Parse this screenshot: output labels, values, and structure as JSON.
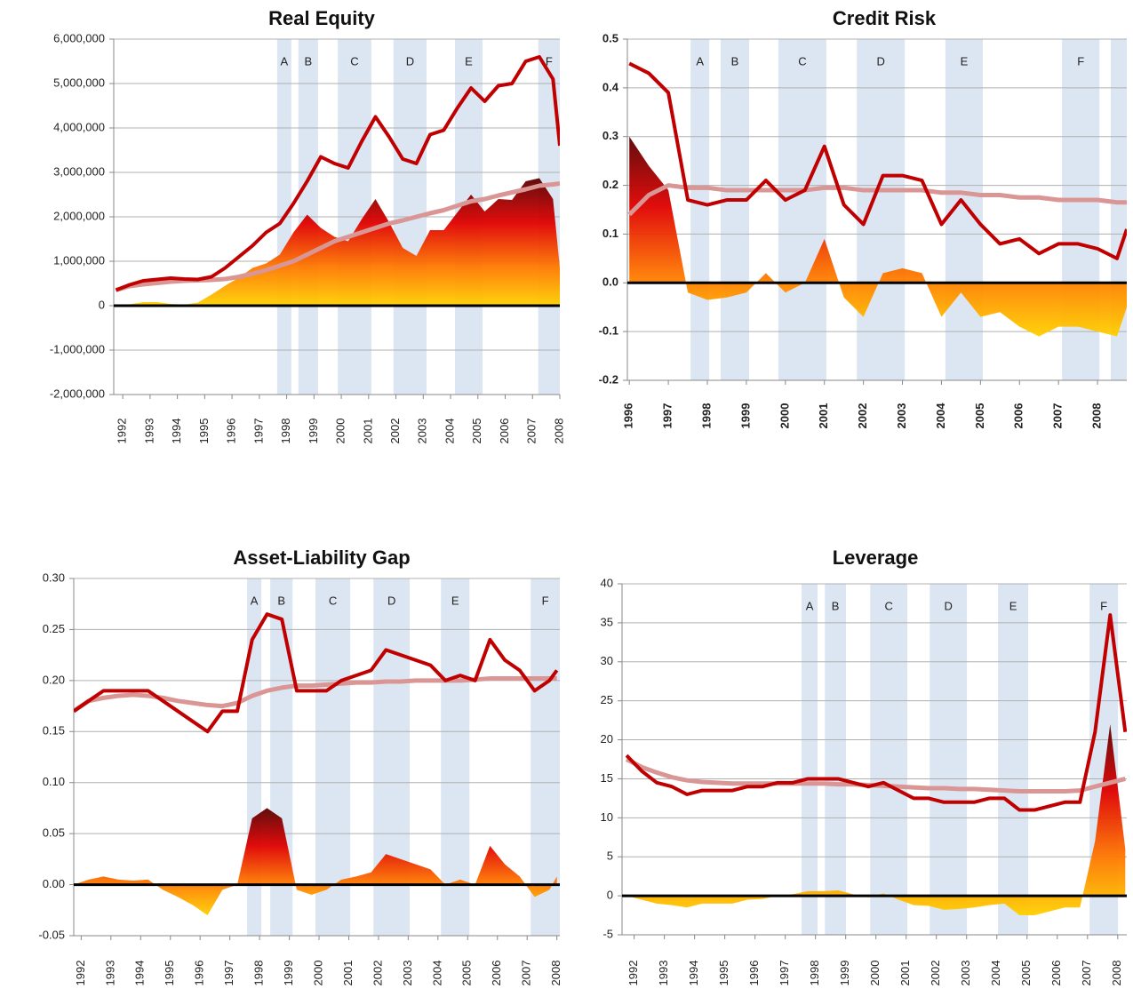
{
  "chart_data": [
    {
      "type": "line",
      "title": "Real Equity",
      "x": [
        1991.75,
        1992.25,
        1992.75,
        1993.25,
        1993.75,
        1994.25,
        1994.75,
        1995.25,
        1995.75,
        1996.25,
        1996.75,
        1997.25,
        1997.75,
        1998.25,
        1998.75,
        1999.25,
        1999.75,
        2000.25,
        2000.75,
        2001.25,
        2001.75,
        2002.25,
        2002.75,
        2003.25,
        2003.75,
        2004.25,
        2004.75,
        2005.25,
        2005.75,
        2006.25,
        2006.75,
        2007.25,
        2007.75,
        2008.0
      ],
      "series": [
        {
          "color": "#ff6600",
          "style": "area",
          "values": [
            0,
            30000,
            80000,
            80000,
            40000,
            20000,
            70000,
            250000,
            450000,
            630000,
            850000,
            950000,
            1150000,
            1650000,
            2050000,
            1750000,
            1550000,
            1450000,
            1950000,
            2400000,
            1880000,
            1300000,
            1120000,
            1700000,
            1700000,
            2100000,
            2500000,
            2120000,
            2400000,
            2380000,
            2800000,
            2870000,
            2400000,
            850000
          ]
        },
        {
          "color": "#d99694",
          "style": "line",
          "values": [
            350000,
            440000,
            480000,
            510000,
            540000,
            560000,
            570000,
            580000,
            600000,
            650000,
            720000,
            800000,
            900000,
            1000000,
            1150000,
            1300000,
            1450000,
            1550000,
            1650000,
            1750000,
            1850000,
            1920000,
            2000000,
            2080000,
            2150000,
            2250000,
            2350000,
            2400000,
            2480000,
            2550000,
            2620000,
            2700000,
            2730000,
            2750000
          ]
        },
        {
          "color": "#c00000",
          "style": "line",
          "values": [
            350000,
            470000,
            560000,
            590000,
            620000,
            600000,
            590000,
            650000,
            850000,
            1100000,
            1350000,
            1650000,
            1850000,
            2300000,
            2800000,
            3350000,
            3200000,
            3100000,
            3700000,
            4250000,
            3800000,
            3300000,
            3200000,
            3850000,
            3950000,
            4450000,
            4900000,
            4600000,
            4950000,
            5000000,
            5500000,
            5600000,
            5100000,
            3600000
          ]
        }
      ],
      "bands": [
        {
          "label": "A",
          "start": 1997.65,
          "end": 1998.17
        },
        {
          "label": "B",
          "start": 1998.43,
          "end": 1999.15
        },
        {
          "label": "C",
          "start": 1999.87,
          "end": 2001.1
        },
        {
          "label": "D",
          "start": 2001.91,
          "end": 2003.12
        },
        {
          "label": "E",
          "start": 2004.16,
          "end": 2005.17
        },
        {
          "label": "F",
          "start": 2007.21,
          "end": 2008.0
        }
      ],
      "xlim": [
        1991.67,
        2008.0
      ],
      "xticks": [
        1992,
        1993,
        1994,
        1995,
        1996,
        1997,
        1998,
        1999,
        2000,
        2001,
        2002,
        2003,
        2004,
        2005,
        2006,
        2007,
        2008
      ],
      "ylim": [
        -2000000,
        6000000
      ],
      "yticks": [
        {
          "value": -2000000,
          "label": "-2,000,000"
        },
        {
          "value": -1000000,
          "label": "-1,000,000"
        },
        0,
        {
          "value": 1000000,
          "label": "1,000,000"
        },
        {
          "value": 2000000,
          "label": "2,000,000"
        },
        {
          "value": 3000000,
          "label": "3,000,000"
        },
        {
          "value": 4000000,
          "label": "4,000,000"
        },
        {
          "value": 5000000,
          "label": "5,000,000"
        },
        {
          "value": 6000000,
          "label": "6,000,000"
        }
      ],
      "grid": true,
      "band_color": "#dce6f2"
    },
    {
      "type": "line",
      "title": "Credit Risk",
      "x": [
        1996.0,
        1996.5,
        1997.0,
        1997.5,
        1998.0,
        1998.5,
        1999.0,
        1999.5,
        2000.0,
        2000.5,
        2001.0,
        2001.5,
        2002.0,
        2002.5,
        2003.0,
        2003.5,
        2004.0,
        2004.5,
        2005.0,
        2005.5,
        2006.0,
        2006.5,
        2007.0,
        2007.5,
        2008.0,
        2008.5,
        2008.75
      ],
      "series": [
        {
          "color": "#ff6600",
          "style": "area",
          "values": [
            0.3,
            0.24,
            0.19,
            -0.02,
            -0.035,
            -0.03,
            -0.02,
            0.02,
            -0.02,
            0.0,
            0.09,
            -0.03,
            -0.07,
            0.02,
            0.03,
            0.02,
            -0.07,
            -0.02,
            -0.07,
            -0.06,
            -0.09,
            -0.11,
            -0.09,
            -0.09,
            -0.1,
            -0.11,
            -0.05
          ]
        },
        {
          "color": "#d99694",
          "style": "line",
          "values": [
            0.14,
            0.18,
            0.2,
            0.195,
            0.195,
            0.19,
            0.19,
            0.19,
            0.19,
            0.19,
            0.195,
            0.195,
            0.19,
            0.19,
            0.19,
            0.19,
            0.185,
            0.185,
            0.18,
            0.18,
            0.175,
            0.175,
            0.17,
            0.17,
            0.17,
            0.165,
            0.165
          ]
        },
        {
          "color": "#c00000",
          "style": "line",
          "values": [
            0.45,
            0.43,
            0.39,
            0.17,
            0.16,
            0.17,
            0.17,
            0.21,
            0.17,
            0.19,
            0.28,
            0.16,
            0.12,
            0.22,
            0.22,
            0.21,
            0.12,
            0.17,
            0.12,
            0.08,
            0.09,
            0.06,
            0.08,
            0.08,
            0.07,
            0.05,
            0.11
          ]
        }
      ],
      "bands": [
        {
          "label": "A",
          "start": 1997.57,
          "end": 1998.05
        },
        {
          "label": "B",
          "start": 1998.34,
          "end": 1999.07
        },
        {
          "label": "C",
          "start": 1999.82,
          "end": 2001.05
        },
        {
          "label": "D",
          "start": 2001.83,
          "end": 2003.06
        },
        {
          "label": "E",
          "start": 2004.1,
          "end": 2005.06
        },
        {
          "label": "F",
          "start": 2007.09,
          "end": 2008.05
        },
        {
          "label": null,
          "start": 2008.34,
          "end": 2008.75
        }
      ],
      "xlim": [
        1995.95,
        2008.75
      ],
      "xticks": [
        1996,
        1997,
        1998,
        1999,
        2000,
        2001,
        2002,
        2003,
        2004,
        2005,
        2006,
        2007,
        2008
      ],
      "ylim": [
        -0.2,
        0.5
      ],
      "yticks": [
        -0.2,
        -0.1,
        {
          "value": 0,
          "label": "0.0"
        },
        0.1,
        0.2,
        0.3,
        0.4,
        0.5
      ],
      "grid": true,
      "band_color": "#dce6f2"
    },
    {
      "type": "line",
      "title": "Asset-Liability Gap",
      "x": [
        1991.75,
        1992.25,
        1992.75,
        1993.25,
        1993.75,
        1994.25,
        1994.75,
        1995.25,
        1995.75,
        1996.25,
        1996.75,
        1997.25,
        1997.75,
        1998.25,
        1998.75,
        1999.25,
        1999.75,
        2000.25,
        2000.75,
        2001.25,
        2001.75,
        2002.25,
        2002.75,
        2003.25,
        2003.75,
        2004.25,
        2004.75,
        2005.25,
        2005.75,
        2006.25,
        2006.75,
        2007.25,
        2007.75,
        2008.0
      ],
      "series": [
        {
          "color": "#ff6600",
          "style": "area",
          "values": [
            0,
            0.005,
            0.008,
            0.005,
            0.004,
            0.005,
            -0.005,
            -0.012,
            -0.02,
            -0.03,
            -0.005,
            0.0,
            0.065,
            0.075,
            0.065,
            -0.005,
            -0.01,
            -0.005,
            0.005,
            0.008,
            0.012,
            0.03,
            0.025,
            0.02,
            0.015,
            0.0,
            0.005,
            0.0,
            0.038,
            0.02,
            0.008,
            -0.012,
            -0.005,
            0.008
          ]
        },
        {
          "color": "#d99694",
          "style": "line",
          "values": [
            0.17,
            0.18,
            0.183,
            0.185,
            0.186,
            0.185,
            0.183,
            0.18,
            0.178,
            0.176,
            0.175,
            0.178,
            0.185,
            0.19,
            0.193,
            0.195,
            0.195,
            0.196,
            0.197,
            0.198,
            0.198,
            0.199,
            0.199,
            0.2,
            0.2,
            0.2,
            0.2,
            0.201,
            0.202,
            0.202,
            0.202,
            0.202,
            0.202,
            0.202
          ]
        },
        {
          "color": "#c00000",
          "style": "line",
          "values": [
            0.17,
            0.18,
            0.19,
            0.19,
            0.19,
            0.19,
            0.18,
            0.17,
            0.16,
            0.15,
            0.17,
            0.17,
            0.24,
            0.265,
            0.26,
            0.19,
            0.19,
            0.19,
            0.2,
            0.205,
            0.21,
            0.23,
            0.225,
            0.22,
            0.215,
            0.2,
            0.205,
            0.2,
            0.24,
            0.22,
            0.21,
            0.19,
            0.2,
            0.21
          ]
        }
      ],
      "bands": [
        {
          "label": "A",
          "start": 1997.58,
          "end": 1998.06
        },
        {
          "label": "B",
          "start": 1998.36,
          "end": 1999.11
        },
        {
          "label": "C",
          "start": 1999.88,
          "end": 2001.05
        },
        {
          "label": "D",
          "start": 2001.83,
          "end": 2003.05
        },
        {
          "label": "E",
          "start": 2004.1,
          "end": 2005.06
        },
        {
          "label": "F",
          "start": 2007.12,
          "end": 2008.1
        }
      ],
      "xlim": [
        1991.75,
        2008.1
      ],
      "xticks": [
        1992,
        1993,
        1994,
        1995,
        1996,
        1997,
        1998,
        1999,
        2000,
        2001,
        2002,
        2003,
        2004,
        2005,
        2006,
        2007,
        2008
      ],
      "ylim": [
        -0.05,
        0.3
      ],
      "yticks": [
        -0.05,
        {
          "value": 0,
          "label": "0.00"
        },
        0.05,
        {
          "value": 0.1,
          "label": "0.10"
        },
        0.15,
        {
          "value": 0.2,
          "label": "0.20"
        },
        0.25,
        {
          "value": 0.3,
          "label": "0.30"
        }
      ],
      "grid": true,
      "band_color": "#dce6f2"
    },
    {
      "type": "line",
      "title": "Leverage",
      "x": [
        1991.75,
        1992.25,
        1992.75,
        1993.25,
        1993.75,
        1994.25,
        1994.75,
        1995.25,
        1995.75,
        1996.25,
        1996.75,
        1997.25,
        1997.75,
        1998.25,
        1998.75,
        1999.25,
        1999.75,
        2000.25,
        2000.75,
        2001.25,
        2001.75,
        2002.25,
        2002.75,
        2003.25,
        2003.75,
        2004.25,
        2004.75,
        2005.25,
        2005.75,
        2006.25,
        2006.75,
        2007.25,
        2007.75,
        2008.25
      ],
      "series": [
        {
          "color": "#ffcc00",
          "style": "area",
          "values": [
            0,
            -0.5,
            -1,
            -1.2,
            -1.5,
            -1,
            -1,
            -1,
            -0.5,
            -0.4,
            0,
            0.2,
            0.6,
            0.6,
            0.7,
            0.2,
            -0.2,
            0.3,
            -0.5,
            -1.2,
            -1.3,
            -1.8,
            -1.7,
            -1.5,
            -1.2,
            -1.0,
            -2.5,
            -2.5,
            -2,
            -1.5,
            -1.5,
            7,
            22,
            6
          ]
        },
        {
          "color": "#d99694",
          "style": "line",
          "values": [
            17.5,
            16.5,
            15.8,
            15.2,
            14.8,
            14.6,
            14.5,
            14.4,
            14.4,
            14.4,
            14.4,
            14.4,
            14.4,
            14.4,
            14.3,
            14.3,
            14.2,
            14.1,
            14.0,
            13.9,
            13.8,
            13.8,
            13.7,
            13.7,
            13.6,
            13.5,
            13.4,
            13.4,
            13.4,
            13.4,
            13.5,
            14.0,
            14.5,
            15
          ]
        },
        {
          "color": "#c00000",
          "style": "line",
          "values": [
            18,
            16,
            14.5,
            14,
            13,
            13.5,
            13.5,
            13.5,
            14,
            14,
            14.5,
            14.5,
            15,
            15,
            15,
            14.5,
            14,
            14.5,
            13.5,
            12.5,
            12.5,
            12,
            12,
            12,
            12.5,
            12.5,
            11,
            11,
            11.5,
            12,
            12,
            21,
            36,
            21
          ]
        }
      ],
      "bands": [
        {
          "label": "A",
          "start": 1997.54,
          "end": 1998.07
        },
        {
          "label": "B",
          "start": 1998.31,
          "end": 1999.01
        },
        {
          "label": "C",
          "start": 1999.81,
          "end": 2001.04
        },
        {
          "label": "D",
          "start": 2001.78,
          "end": 2003.01
        },
        {
          "label": "E",
          "start": 2004.04,
          "end": 2005.04
        },
        {
          "label": "F",
          "start": 2007.07,
          "end": 2008.01
        }
      ],
      "xlim": [
        1991.6,
        2008.3
      ],
      "xticks": [
        1992,
        1993,
        1994,
        1995,
        1996,
        1997,
        1998,
        1999,
        2000,
        2001,
        2002,
        2003,
        2004,
        2005,
        2006,
        2007,
        2008
      ],
      "ylim": [
        -5,
        40
      ],
      "yticks": [
        -5,
        0,
        5,
        10,
        15,
        20,
        25,
        30,
        35,
        40
      ],
      "grid": true,
      "band_color": "#dce6f2"
    }
  ]
}
